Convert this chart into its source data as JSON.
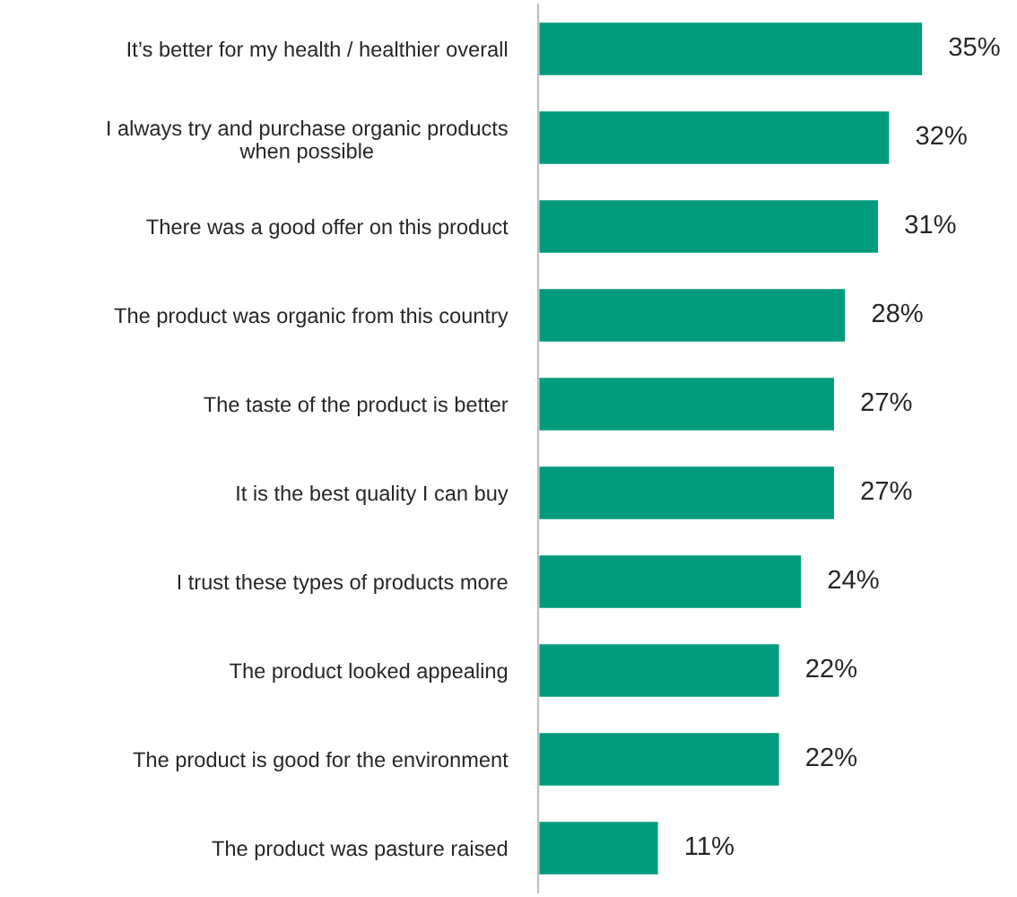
{
  "chart_data": {
    "type": "bar",
    "orientation": "horizontal",
    "categories": [
      "It’s better for my health / healthier overall",
      "I always try and purchase organic products\nwhen possible",
      "There was a good offer on this product",
      "The product was organic from this country",
      "The taste of the product is better",
      "It is the best quality I can buy",
      "I trust these types of products more",
      "The product looked appealing",
      "The product is good for the environment",
      "The product was pasture raised"
    ],
    "values": [
      35,
      32,
      31,
      28,
      27,
      27,
      24,
      22,
      22,
      11
    ],
    "value_labels": [
      "35%",
      "32%",
      "31%",
      "28%",
      "27%",
      "27%",
      "24%",
      "22%",
      "22%",
      "11%"
    ],
    "color": "#009b7d",
    "grid": false,
    "legend": false
  }
}
